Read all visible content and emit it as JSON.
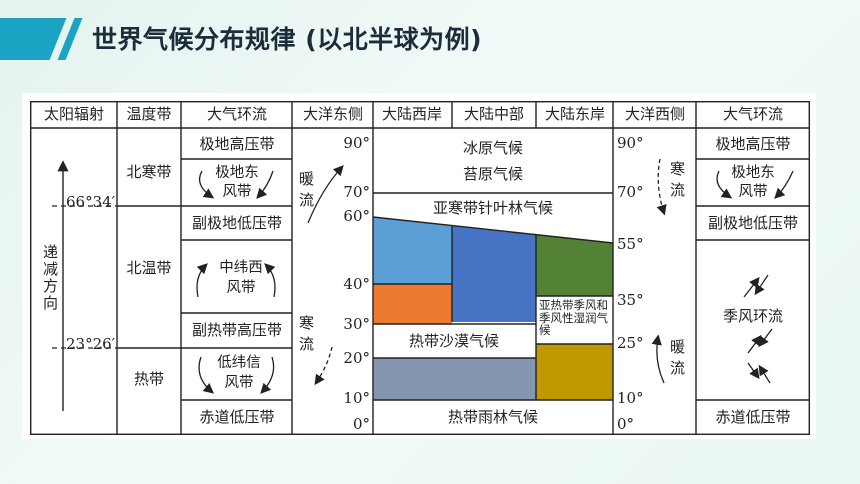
{
  "page": {
    "title": "世界气候分布规律 (以北半球为例)"
  },
  "colors": {
    "accent": "#1aa3c3",
    "line": "#222222",
    "fill_blue_light": "#5b9fd6",
    "fill_blue": "#4773c5",
    "fill_orange": "#ec7a31",
    "fill_green": "#548235",
    "fill_gold": "#c09800",
    "fill_slate": "#8496b0"
  },
  "table": {
    "headers": [
      "太阳辐射",
      "温度带",
      "大气环流",
      "大洋东侧",
      "大陆西岸",
      "大陆中部",
      "大陆东岸",
      "大洋西侧",
      "大气环流"
    ],
    "radiation": {
      "latitude_6634": "66°34′",
      "latitude_2326": "23°26′",
      "direction_label": "递减方向"
    },
    "temperature_zones": [
      "北寒带",
      "北温带",
      "热带"
    ],
    "circulation": [
      "极地高压带",
      "极地东风带",
      "副极地低压带",
      "中纬西风带",
      "副热带高压带",
      "低纬信风带",
      "赤道低压带"
    ],
    "east_ocean": {
      "warm": "暖流",
      "cold": "寒流"
    },
    "west_ocean": {
      "cold": "寒流",
      "warm": "暖流"
    },
    "left_lat": [
      "90°",
      "70°",
      "60°",
      "40°",
      "30°",
      "20°",
      "10°",
      "0°"
    ],
    "right_lat": [
      "90°",
      "70°",
      "55°",
      "35°",
      "25°",
      "10°",
      "0°"
    ],
    "climates": {
      "ice_cap": "冰原气候",
      "tundra": "苔原气候",
      "subarctic": "亚寒带针叶林气候",
      "desert": "热带沙漠气候",
      "monsoon": "亚热带季风和季风性湿润气候",
      "rainforest": "热带雨林气候"
    },
    "right_circulation": [
      "极地高压带",
      "极地东风带",
      "副极地低压带",
      "季风环流",
      "赤道低压带"
    ]
  }
}
